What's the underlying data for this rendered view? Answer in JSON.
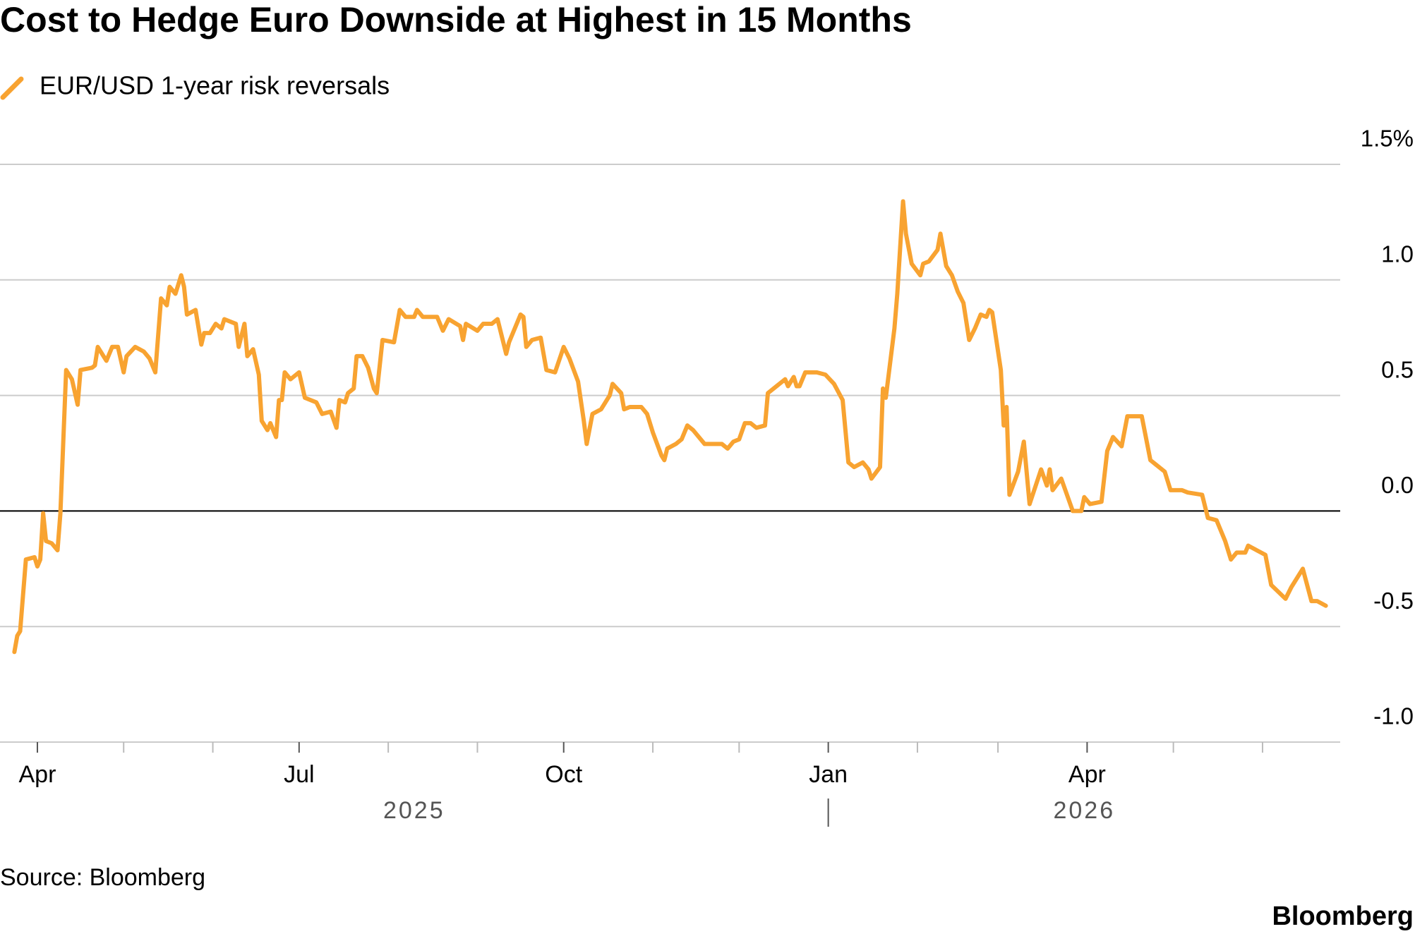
{
  "chart_data": {
    "type": "line",
    "title": "Cost to Hedge Euro Downside at Highest in 15 Months",
    "source": "Source: Bloomberg",
    "branding": "Bloomberg",
    "x": [
      "2025-03-24",
      "2025-03-25",
      "2025-03-26",
      "2025-03-28",
      "2025-03-31",
      "2025-04-01",
      "2025-04-02",
      "2025-04-03",
      "2025-04-04",
      "2025-04-06",
      "2025-04-08",
      "2025-04-09",
      "2025-04-11",
      "2025-04-13",
      "2025-04-15",
      "2025-04-16",
      "2025-04-20",
      "2025-04-21",
      "2025-04-22",
      "2025-04-24",
      "2025-04-25",
      "2025-04-27",
      "2025-04-29",
      "2025-05-01",
      "2025-05-02",
      "2025-05-05",
      "2025-05-08",
      "2025-05-10",
      "2025-05-12",
      "2025-05-14",
      "2025-05-16",
      "2025-05-17",
      "2025-05-19",
      "2025-05-21",
      "2025-05-22",
      "2025-05-23",
      "2025-05-26",
      "2025-05-28",
      "2025-05-29",
      "2025-05-31",
      "2025-06-02",
      "2025-06-04",
      "2025-06-05",
      "2025-06-09",
      "2025-06-10",
      "2025-06-12",
      "2025-06-13",
      "2025-06-15",
      "2025-06-17",
      "2025-06-18",
      "2025-06-20",
      "2025-06-21",
      "2025-06-23",
      "2025-06-24",
      "2025-06-25",
      "2025-06-26",
      "2025-06-28",
      "2025-07-01",
      "2025-07-03",
      "2025-07-07",
      "2025-07-09",
      "2025-07-12",
      "2025-07-14",
      "2025-07-15",
      "2025-07-17",
      "2025-07-18",
      "2025-07-20",
      "2025-07-21",
      "2025-07-23",
      "2025-07-25",
      "2025-07-27",
      "2025-07-28",
      "2025-07-30",
      "2025-08-03",
      "2025-08-05",
      "2025-08-07",
      "2025-08-10",
      "2025-08-11",
      "2025-08-13",
      "2025-08-18",
      "2025-08-20",
      "2025-08-22",
      "2025-08-26",
      "2025-08-27",
      "2025-08-28",
      "2025-09-01",
      "2025-09-03",
      "2025-09-06",
      "2025-09-08",
      "2025-09-11",
      "2025-09-12",
      "2025-09-16",
      "2025-09-17",
      "2025-09-18",
      "2025-09-20",
      "2025-09-23",
      "2025-09-25",
      "2025-09-28",
      "2025-10-01",
      "2025-10-03",
      "2025-10-06",
      "2025-10-08",
      "2025-10-09",
      "2025-10-11",
      "2025-10-14",
      "2025-10-17",
      "2025-10-18",
      "2025-10-21",
      "2025-10-22",
      "2025-10-24",
      "2025-10-28",
      "2025-10-30",
      "2025-11-01",
      "2025-11-04",
      "2025-11-05",
      "2025-11-06",
      "2025-11-09",
      "2025-11-11",
      "2025-11-13",
      "2025-11-15",
      "2025-11-19",
      "2025-11-22",
      "2025-11-25",
      "2025-11-27",
      "2025-11-29",
      "2025-12-01",
      "2025-12-03",
      "2025-12-05",
      "2025-12-07",
      "2025-12-10",
      "2025-12-11",
      "2025-12-14",
      "2025-12-17",
      "2025-12-18",
      "2025-12-20",
      "2025-12-21",
      "2025-12-22",
      "2025-12-24",
      "2025-12-26",
      "2025-12-28",
      "2025-12-31",
      "2026-01-03",
      "2026-01-06",
      "2026-01-08",
      "2026-01-10",
      "2026-01-13",
      "2026-01-15",
      "2026-01-16",
      "2026-01-19",
      "2026-01-20",
      "2026-01-21",
      "2026-01-24",
      "2026-01-25",
      "2026-01-27",
      "2026-01-28",
      "2026-01-30",
      "2026-02-02",
      "2026-02-03",
      "2026-02-05",
      "2026-02-08",
      "2026-02-09",
      "2026-02-11",
      "2026-02-13",
      "2026-02-15",
      "2026-02-17",
      "2026-02-19",
      "2026-02-21",
      "2026-02-23",
      "2026-02-25",
      "2026-02-26",
      "2026-02-27",
      "2026-03-02",
      "2026-03-03",
      "2026-03-04",
      "2026-03-05",
      "2026-03-08",
      "2026-03-10",
      "2026-03-12",
      "2026-03-16",
      "2026-03-18",
      "2026-03-19",
      "2026-03-20",
      "2026-03-23",
      "2026-03-27",
      "2026-03-30",
      "2026-03-31",
      "2026-04-02",
      "2026-04-06",
      "2026-04-08",
      "2026-04-10",
      "2026-04-13",
      "2026-04-15",
      "2026-04-20",
      "2026-04-23",
      "2026-04-25",
      "2026-04-28",
      "2026-04-30",
      "2026-05-04",
      "2026-05-06",
      "2026-05-11",
      "2026-05-13",
      "2026-05-16",
      "2026-05-19",
      "2026-05-21",
      "2026-05-23",
      "2026-05-26",
      "2026-05-27",
      "2026-05-30",
      "2026-06-02",
      "2026-06-04",
      "2026-06-09",
      "2026-06-11",
      "2026-06-15",
      "2026-06-18",
      "2026-06-20",
      "2026-06-23"
    ],
    "series": [
      {
        "name": "EUR/USD 1-year risk reversals",
        "color": "#f8a331",
        "values": [
          -0.61,
          -0.54,
          -0.52,
          -0.21,
          -0.2,
          -0.24,
          -0.21,
          -0.01,
          -0.13,
          -0.14,
          -0.17,
          -0.01,
          0.61,
          0.57,
          0.46,
          0.61,
          0.62,
          0.63,
          0.71,
          0.67,
          0.65,
          0.71,
          0.71,
          0.6,
          0.67,
          0.71,
          0.69,
          0.66,
          0.6,
          0.92,
          0.89,
          0.97,
          0.94,
          1.02,
          0.97,
          0.85,
          0.87,
          0.72,
          0.77,
          0.77,
          0.81,
          0.79,
          0.83,
          0.81,
          0.71,
          0.81,
          0.67,
          0.7,
          0.59,
          0.39,
          0.35,
          0.38,
          0.32,
          0.48,
          0.48,
          0.6,
          0.57,
          0.6,
          0.49,
          0.47,
          0.42,
          0.43,
          0.36,
          0.48,
          0.47,
          0.51,
          0.53,
          0.67,
          0.67,
          0.62,
          0.53,
          0.51,
          0.74,
          0.73,
          0.87,
          0.84,
          0.84,
          0.87,
          0.84,
          0.84,
          0.78,
          0.83,
          0.8,
          0.74,
          0.81,
          0.78,
          0.81,
          0.81,
          0.83,
          0.68,
          0.73,
          0.85,
          0.84,
          0.71,
          0.74,
          0.75,
          0.61,
          0.6,
          0.71,
          0.66,
          0.56,
          0.39,
          0.29,
          0.42,
          0.44,
          0.5,
          0.55,
          0.51,
          0.44,
          0.45,
          0.45,
          0.42,
          0.34,
          0.24,
          0.22,
          0.27,
          0.29,
          0.31,
          0.37,
          0.35,
          0.29,
          0.29,
          0.29,
          0.27,
          0.3,
          0.31,
          0.38,
          0.38,
          0.36,
          0.37,
          0.51,
          0.54,
          0.57,
          0.54,
          0.58,
          0.54,
          0.54,
          0.6,
          0.6,
          0.6,
          0.59,
          0.55,
          0.48,
          0.21,
          0.19,
          0.21,
          0.18,
          0.14,
          0.19,
          0.53,
          0.49,
          0.79,
          0.94,
          1.34,
          1.2,
          1.07,
          1.02,
          1.07,
          1.08,
          1.13,
          1.2,
          1.06,
          1.02,
          0.95,
          0.9,
          0.74,
          0.79,
          0.85,
          0.84,
          0.87,
          0.86,
          0.61,
          0.37,
          0.45,
          0.07,
          0.17,
          0.3,
          0.03,
          0.18,
          0.11,
          0.18,
          0.09,
          0.14,
          0,
          0,
          0.06,
          0.03,
          0.04,
          0.26,
          0.32,
          0.28,
          0.41,
          0.41,
          0.22,
          0.2,
          0.17,
          0.09,
          0.09,
          0.08,
          0.07,
          -0.03,
          -0.04,
          -0.13,
          -0.21,
          -0.18,
          -0.18,
          -0.15,
          -0.17,
          -0.19,
          -0.32,
          -0.38,
          -0.33,
          -0.25,
          -0.39,
          -0.39,
          -0.41
        ]
      }
    ],
    "xlim": [
      "2025-03-19",
      "2026-06-28"
    ],
    "xticks": [
      {
        "value": "2025-04",
        "label": "Apr"
      },
      {
        "value": "2025-07",
        "label": "Jul"
      },
      {
        "value": "2025-10",
        "label": "Oct"
      },
      {
        "value": "2026-01",
        "label": "Jan"
      },
      {
        "value": "2026-04",
        "label": "Apr"
      }
    ],
    "minor_xticks": [
      "2025-05",
      "2025-06",
      "2025-08",
      "2025-09",
      "2025-11",
      "2025-12",
      "2026-02",
      "2026-03",
      "2026-05",
      "2026-06"
    ],
    "years": [
      "2025",
      "2026"
    ],
    "ylim": [
      -1,
      1.5
    ],
    "yticks": [
      {
        "value": -1,
        "label": "-1.0"
      },
      -0.5,
      {
        "value": 0,
        "label": "0.0"
      },
      0.5,
      {
        "value": 1,
        "label": "1.0"
      },
      {
        "value": 1.5,
        "label": "1.5%"
      }
    ],
    "grid": true,
    "zero_line": true,
    "legend": "top-left"
  }
}
